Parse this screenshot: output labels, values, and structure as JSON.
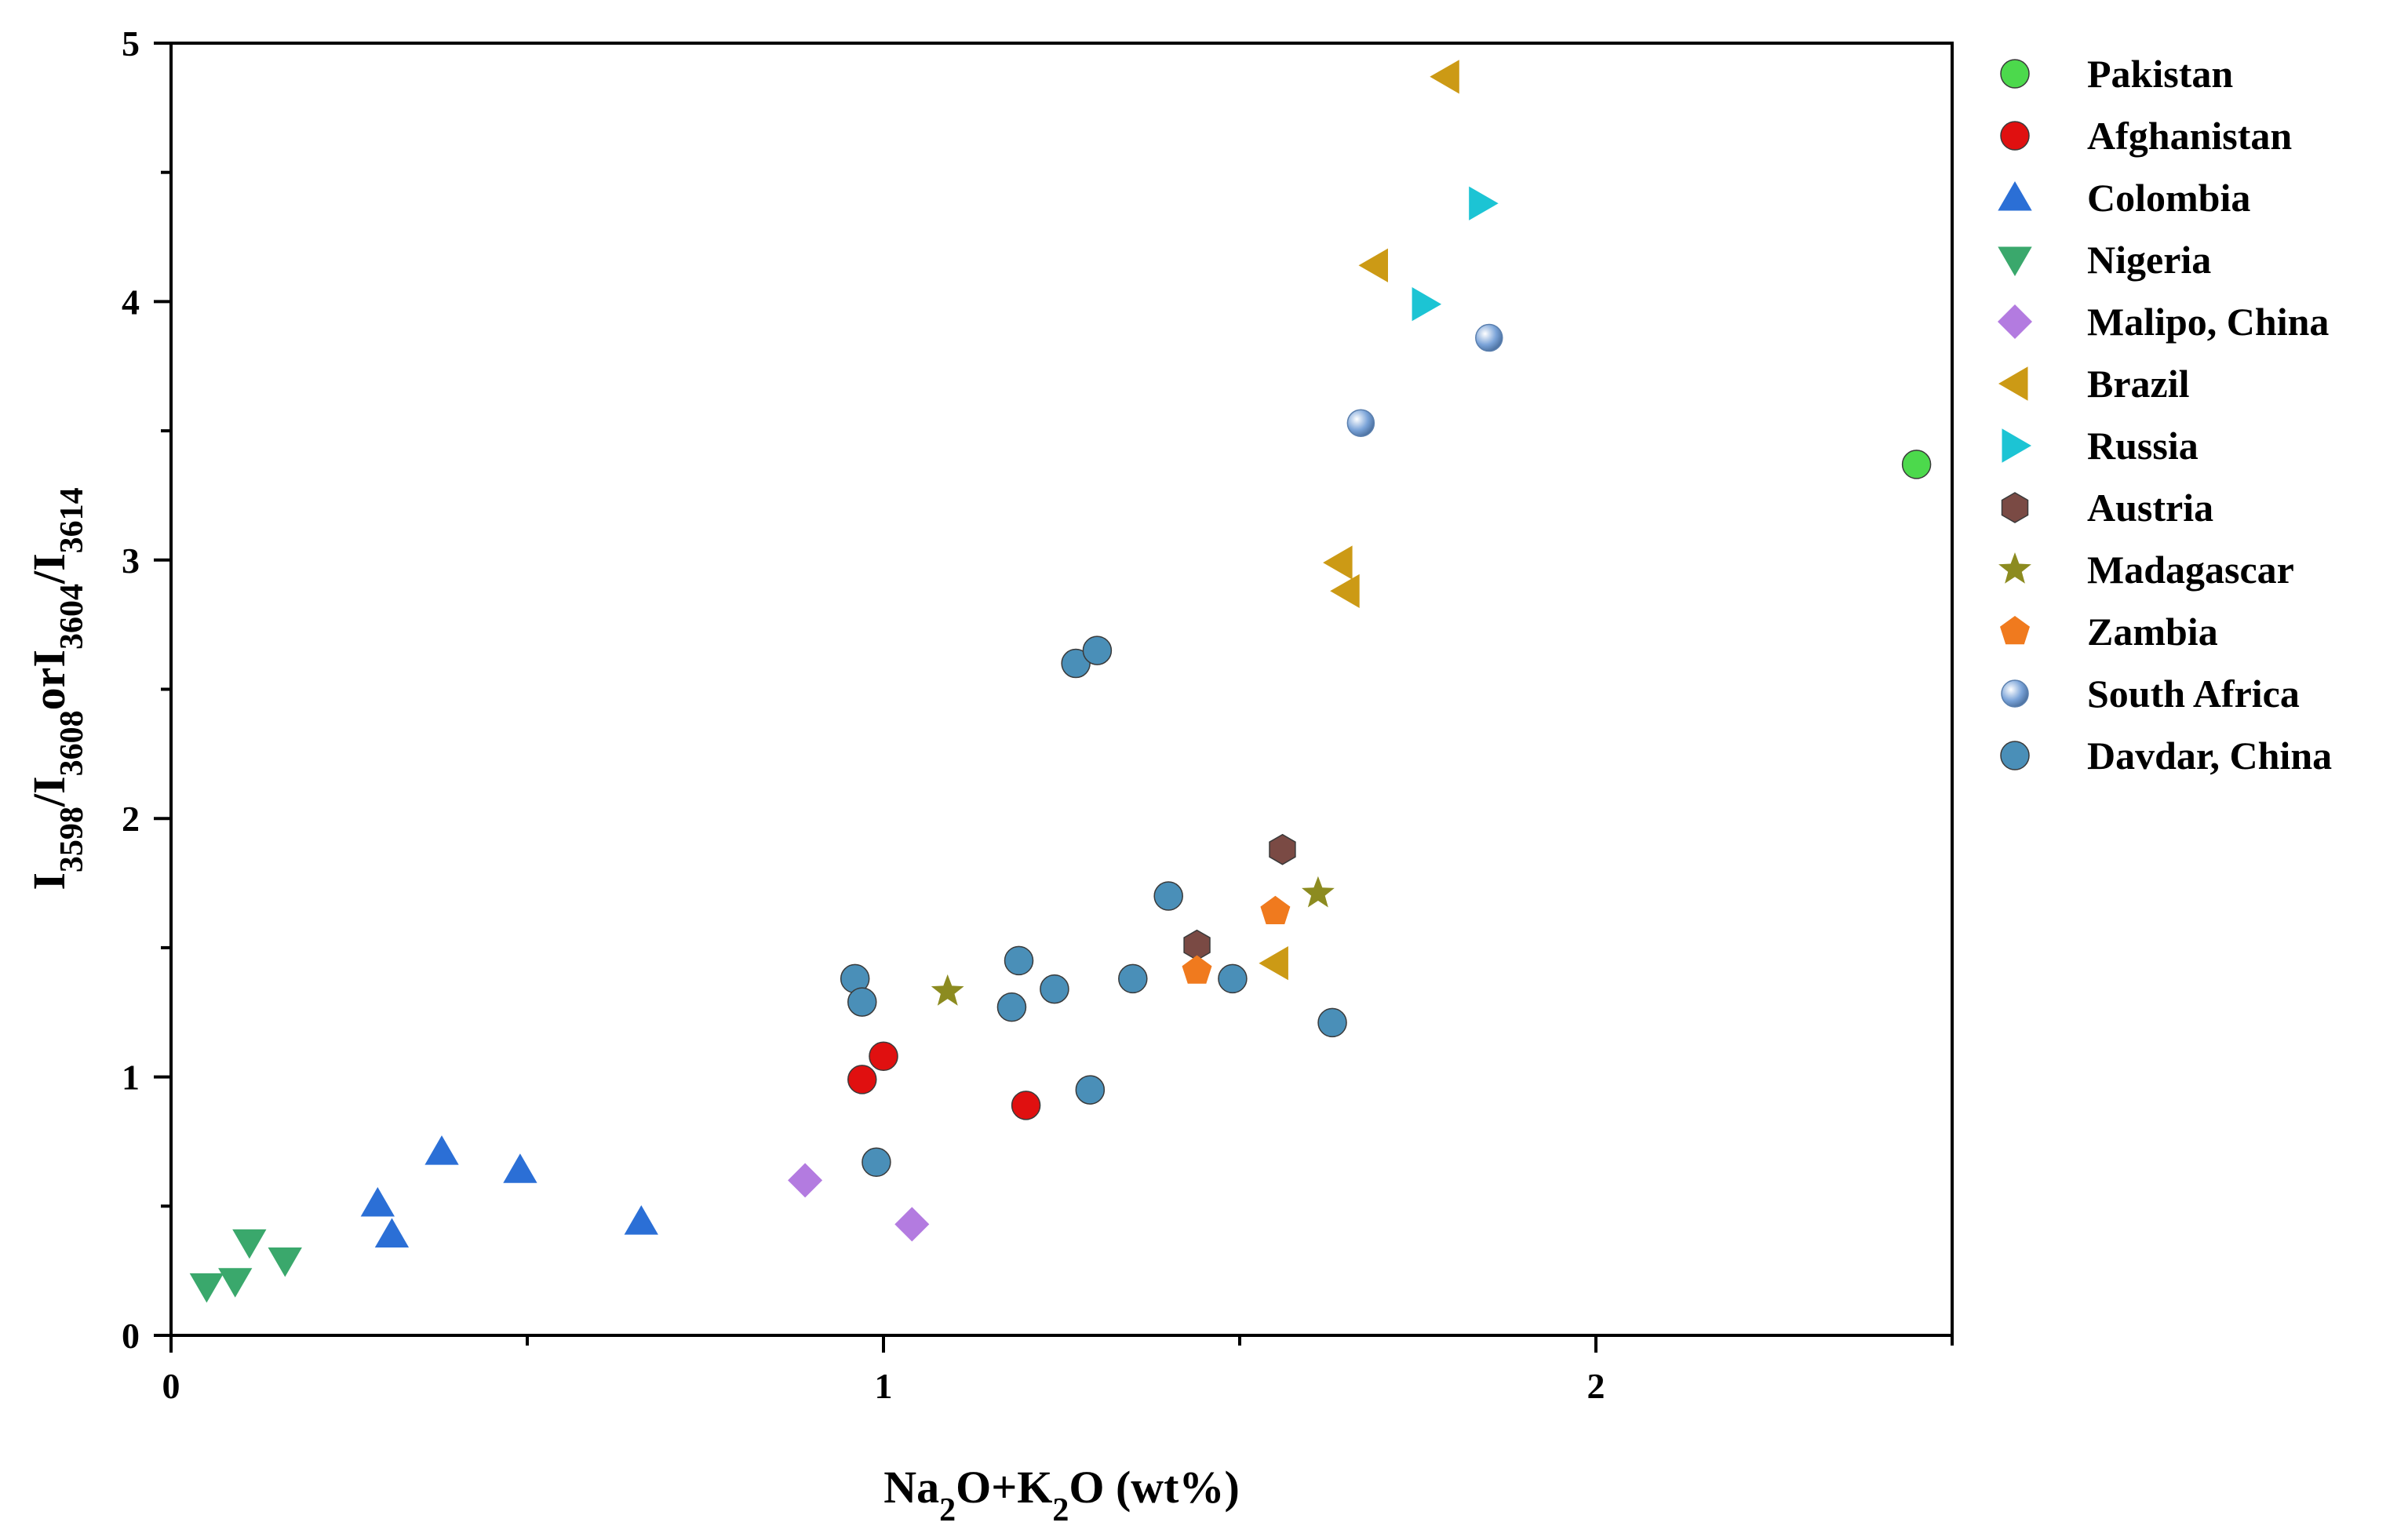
{
  "chart_data": {
    "type": "scatter",
    "xlabel": {
      "parts": [
        [
          "Na",
          false
        ],
        [
          "2",
          true
        ],
        [
          "O+K",
          false
        ],
        [
          "2",
          true
        ],
        [
          "O (wt%)",
          false
        ]
      ]
    },
    "ylabel": {
      "parts": [
        [
          "I",
          false
        ],
        [
          "3598",
          true
        ],
        [
          "/I",
          false
        ],
        [
          "3608",
          true
        ],
        [
          "or",
          false
        ],
        [
          "I",
          false
        ],
        [
          "3604",
          true
        ],
        [
          "/I",
          false
        ],
        [
          "3614",
          true
        ]
      ]
    },
    "xlim": [
      0,
      2.5
    ],
    "ylim": [
      0,
      5
    ],
    "xticks": [
      0,
      1,
      2
    ],
    "yticks": [
      0,
      1,
      2,
      3,
      4,
      5
    ],
    "x_minor_ticks": [
      0.5,
      1.5,
      2.5
    ],
    "legend_position": "right",
    "series": [
      {
        "name": "Pakistan",
        "marker": "circle",
        "color": "#4cd94c",
        "points": [
          [
            2.45,
            3.37
          ]
        ]
      },
      {
        "name": "Afghanistan",
        "marker": "circle",
        "color": "#e01010",
        "points": [
          [
            0.97,
            0.99
          ],
          [
            1.0,
            1.08
          ],
          [
            1.2,
            0.89
          ]
        ]
      },
      {
        "name": "Colombia",
        "marker": "triangle-up",
        "color": "#2b6fd6",
        "points": [
          [
            0.29,
            0.51
          ],
          [
            0.31,
            0.39
          ],
          [
            0.38,
            0.71
          ],
          [
            0.49,
            0.64
          ],
          [
            0.66,
            0.44
          ]
        ]
      },
      {
        "name": "Nigeria",
        "marker": "triangle-down",
        "color": "#3aa86c",
        "points": [
          [
            0.05,
            0.19
          ],
          [
            0.09,
            0.21
          ],
          [
            0.11,
            0.36
          ],
          [
            0.16,
            0.29
          ]
        ]
      },
      {
        "name": "Malipo, China",
        "marker": "diamond",
        "color": "#b37be0",
        "points": [
          [
            0.89,
            0.6
          ],
          [
            1.04,
            0.43
          ]
        ]
      },
      {
        "name": "Brazil",
        "marker": "triangle-left",
        "color": "#cc9a15",
        "points": [
          [
            1.79,
            4.87
          ],
          [
            1.69,
            4.14
          ],
          [
            1.64,
            2.99
          ],
          [
            1.65,
            2.88
          ],
          [
            1.55,
            1.44
          ]
        ]
      },
      {
        "name": "Russia",
        "marker": "triangle-right",
        "color": "#1cc4d4",
        "points": [
          [
            1.84,
            4.38
          ],
          [
            1.76,
            3.99
          ]
        ]
      },
      {
        "name": "Austria",
        "marker": "hexagon",
        "color": "#7a4a44",
        "points": [
          [
            1.56,
            1.88
          ],
          [
            1.44,
            1.51
          ]
        ]
      },
      {
        "name": "Madagascar",
        "marker": "star",
        "color": "#8c8b20",
        "points": [
          [
            1.09,
            1.33
          ],
          [
            1.61,
            1.71
          ]
        ]
      },
      {
        "name": "Zambia",
        "marker": "pentagon",
        "color": "#f07a1e",
        "points": [
          [
            1.44,
            1.41
          ],
          [
            1.55,
            1.64
          ]
        ]
      },
      {
        "name": "South Africa",
        "marker": "sphere",
        "color": "#7aa3d8",
        "points": [
          [
            1.67,
            3.53
          ],
          [
            1.85,
            3.86
          ]
        ]
      },
      {
        "name": "Davdar, China",
        "marker": "circle",
        "color": "#4a8fb8",
        "points": [
          [
            1.27,
            2.6
          ],
          [
            1.3,
            2.65
          ],
          [
            0.96,
            1.38
          ],
          [
            0.97,
            1.29
          ],
          [
            1.19,
            1.45
          ],
          [
            1.18,
            1.27
          ],
          [
            1.24,
            1.34
          ],
          [
            1.35,
            1.38
          ],
          [
            1.4,
            1.7
          ],
          [
            1.49,
            1.38
          ],
          [
            1.63,
            1.21
          ],
          [
            1.29,
            0.95
          ],
          [
            0.99,
            0.67
          ]
        ]
      }
    ]
  }
}
